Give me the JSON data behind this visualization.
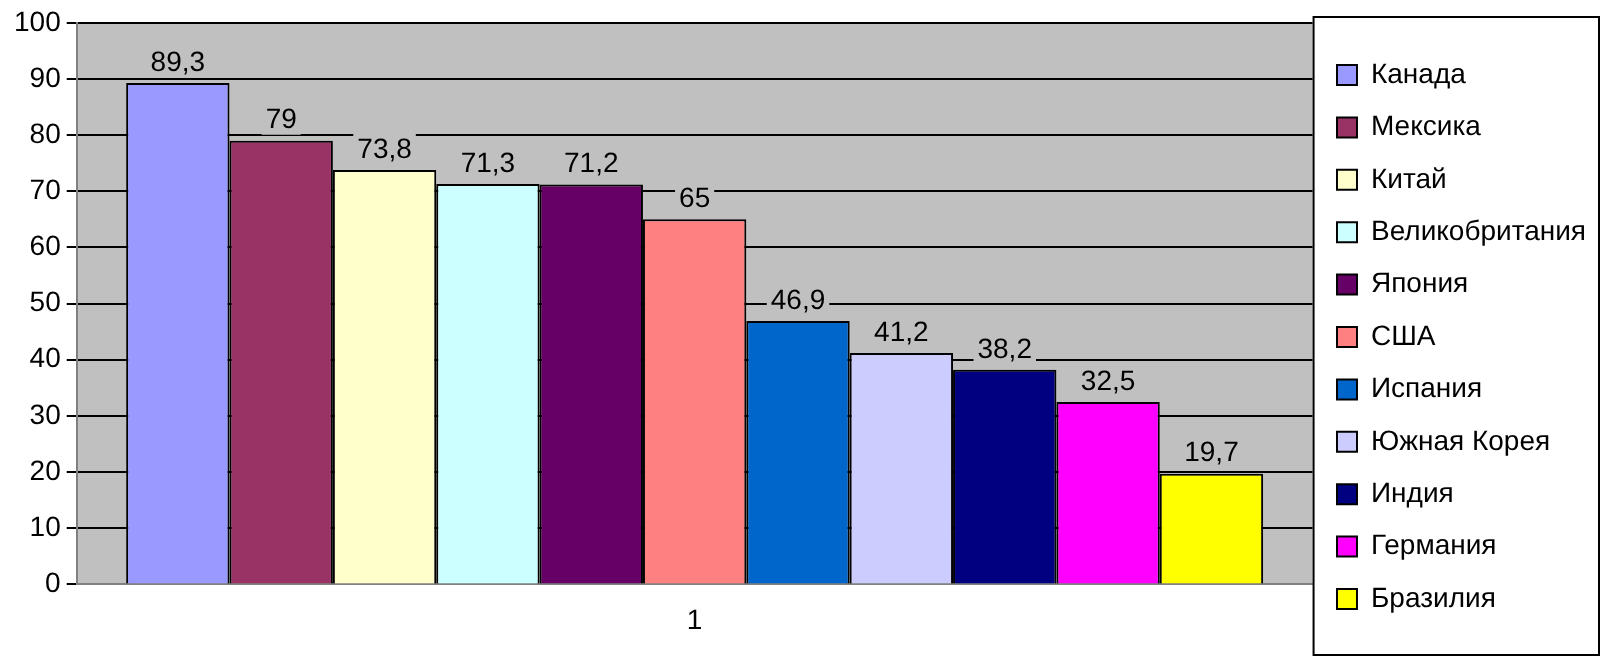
{
  "chart_data": {
    "type": "bar",
    "categories": [
      "1"
    ],
    "series": [
      {
        "name": "Канада",
        "color": "#9999ff",
        "values": [
          89.3
        ],
        "value_labels": [
          "89,3"
        ]
      },
      {
        "name": "Мексика",
        "color": "#993366",
        "values": [
          79
        ],
        "value_labels": [
          "79"
        ]
      },
      {
        "name": "Китай",
        "color": "#ffffcc",
        "values": [
          73.8
        ],
        "value_labels": [
          "73,8"
        ]
      },
      {
        "name": "Великобритания",
        "color": "#ccffff",
        "values": [
          71.3
        ],
        "value_labels": [
          "71,3"
        ]
      },
      {
        "name": "Япония",
        "color": "#660066",
        "values": [
          71.2
        ],
        "value_labels": [
          "71,2"
        ]
      },
      {
        "name": "США",
        "color": "#ff8080",
        "values": [
          65
        ],
        "value_labels": [
          "65"
        ]
      },
      {
        "name": "Испания",
        "color": "#0066cc",
        "values": [
          46.9
        ],
        "value_labels": [
          "46,9"
        ]
      },
      {
        "name": "Южная Корея",
        "color": "#ccccff",
        "values": [
          41.2
        ],
        "value_labels": [
          "41,2"
        ]
      },
      {
        "name": "Индия",
        "color": "#000080",
        "values": [
          38.2
        ],
        "value_labels": [
          "38,2"
        ]
      },
      {
        "name": "Германия",
        "color": "#ff00ff",
        "values": [
          32.5
        ],
        "value_labels": [
          "32,5"
        ]
      },
      {
        "name": "Бразилия",
        "color": "#ffff00",
        "values": [
          19.7
        ],
        "value_labels": [
          "19,7"
        ]
      }
    ],
    "ylim": [
      0,
      100
    ],
    "yticks": [
      0,
      10,
      20,
      30,
      40,
      50,
      60,
      70,
      80,
      90,
      100
    ],
    "grid": "y",
    "legend": "right"
  }
}
